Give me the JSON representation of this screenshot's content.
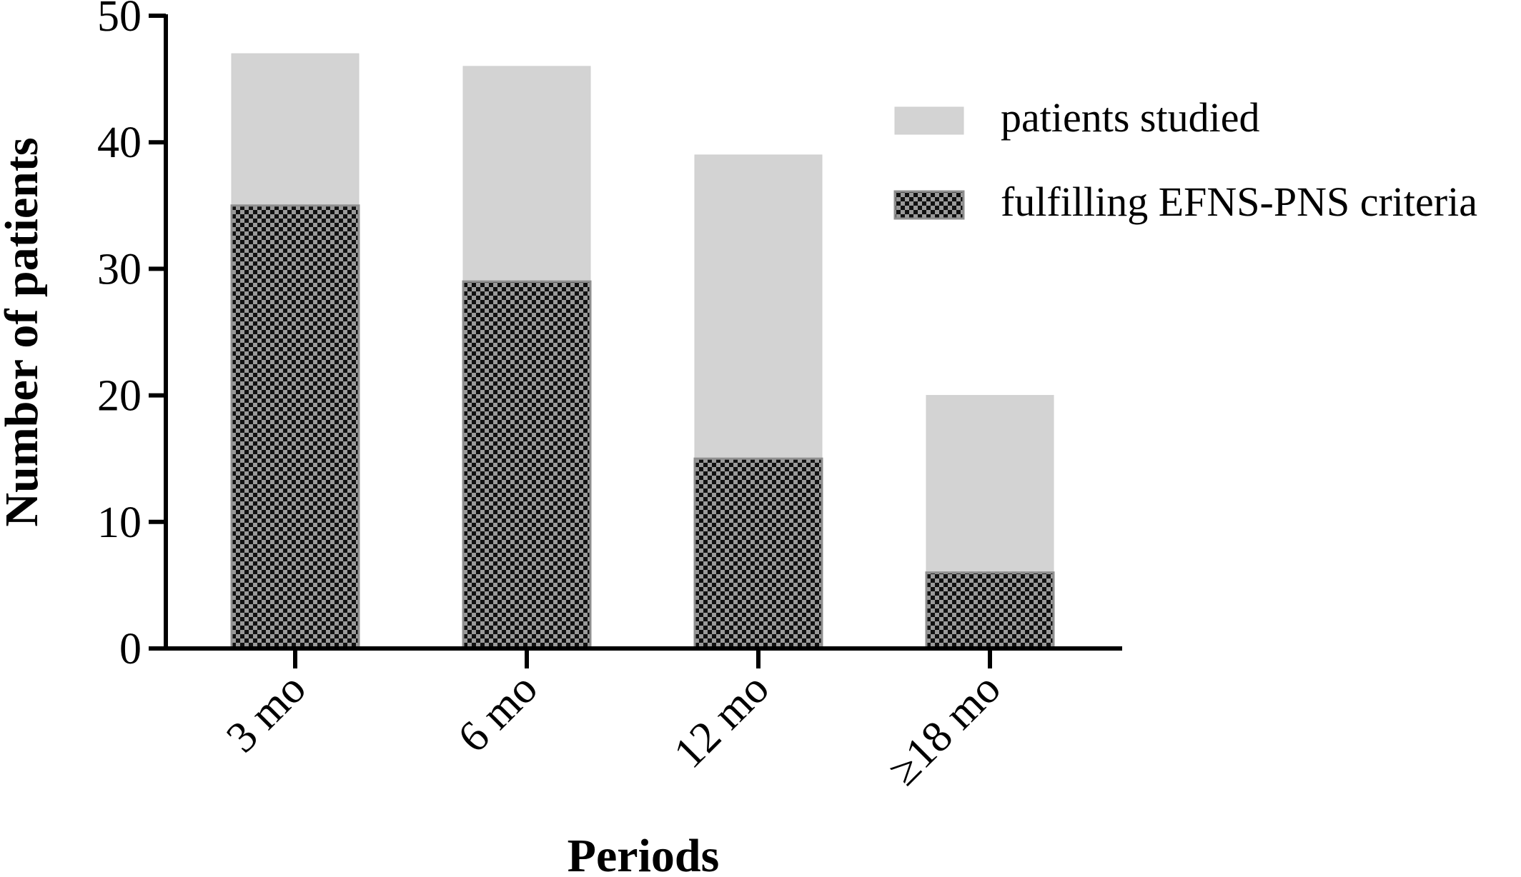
{
  "chart_data": {
    "type": "bar",
    "stacked": false,
    "overlaid": true,
    "xlabel": "Periods",
    "ylabel": "Number of patients",
    "ylim": [
      0,
      50
    ],
    "yticks": [
      0,
      10,
      20,
      30,
      40,
      50
    ],
    "ytick_labels": [
      "0",
      "10",
      "20",
      "30",
      "40",
      "50"
    ],
    "categories": [
      "3 mo",
      "6 mo",
      "12 mo",
      "≥18 mo"
    ],
    "series": [
      {
        "name": "patients studied",
        "values": [
          47,
          46,
          39,
          20
        ],
        "color": "#d3d3d3",
        "pattern": "solid"
      },
      {
        "name": "fulfilling EFNS-PNS criteria",
        "values": [
          35,
          29,
          15,
          6
        ],
        "color": "#2b2b2b",
        "pattern": "checkerboard"
      }
    ],
    "legend_position": "top-right",
    "grid": false
  }
}
